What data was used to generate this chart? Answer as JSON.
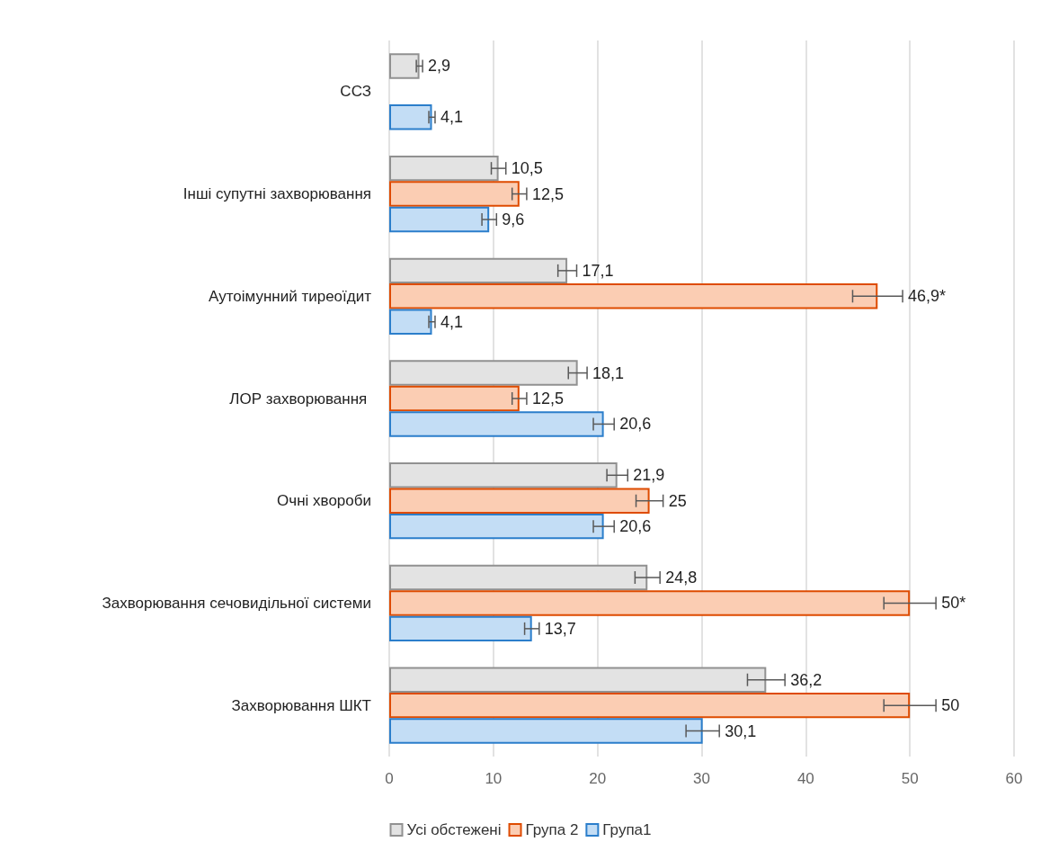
{
  "chart_data": {
    "type": "bar",
    "orientation": "horizontal",
    "categories": [
      "ССЗ",
      "Інші супутні захворювання",
      "Аутоімунний тиреоїдит",
      "ЛОР захворювання ",
      "Очні хвороби",
      "Захворювання сечовидільної системи",
      "Захворювання ШКТ"
    ],
    "series": [
      {
        "name": "Усі обстежені",
        "color": "#e3e3e3",
        "values": [
          2.9,
          10.5,
          17.1,
          18.1,
          21.9,
          24.8,
          36.2
        ],
        "errors": [
          0.3,
          0.7,
          0.9,
          0.9,
          1,
          1.2,
          1.8
        ],
        "value_labels": [
          "2,9",
          "10,5",
          "17,1",
          "18,1",
          "21,9",
          "24,8",
          "36,2"
        ]
      },
      {
        "name": "Група 2",
        "color": "#fbcdb3",
        "values": [
          null,
          12.5,
          46.9,
          12.5,
          25,
          50,
          50
        ],
        "errors": [
          null,
          0.7,
          2.4,
          0.7,
          1.3,
          2.5,
          2.5
        ],
        "value_labels": [
          null,
          "12,5",
          "46,9*",
          "12,5",
          "25",
          "50*",
          "50"
        ]
      },
      {
        "name": "Група1",
        "color": "#c3ddf5",
        "values": [
          4.1,
          9.6,
          4.1,
          20.6,
          20.6,
          13.7,
          30.1
        ],
        "errors": [
          0.3,
          0.7,
          0.3,
          1,
          1,
          0.7,
          1.6
        ],
        "value_labels": [
          "4,1",
          "9,6",
          "4,1",
          "20,6",
          "20,6",
          "13,7",
          "30,1"
        ]
      }
    ],
    "xlim": [
      0,
      60
    ],
    "xticks": [
      0,
      10,
      20,
      30,
      40,
      50,
      60
    ],
    "grid": "x",
    "legend": "bottom"
  }
}
